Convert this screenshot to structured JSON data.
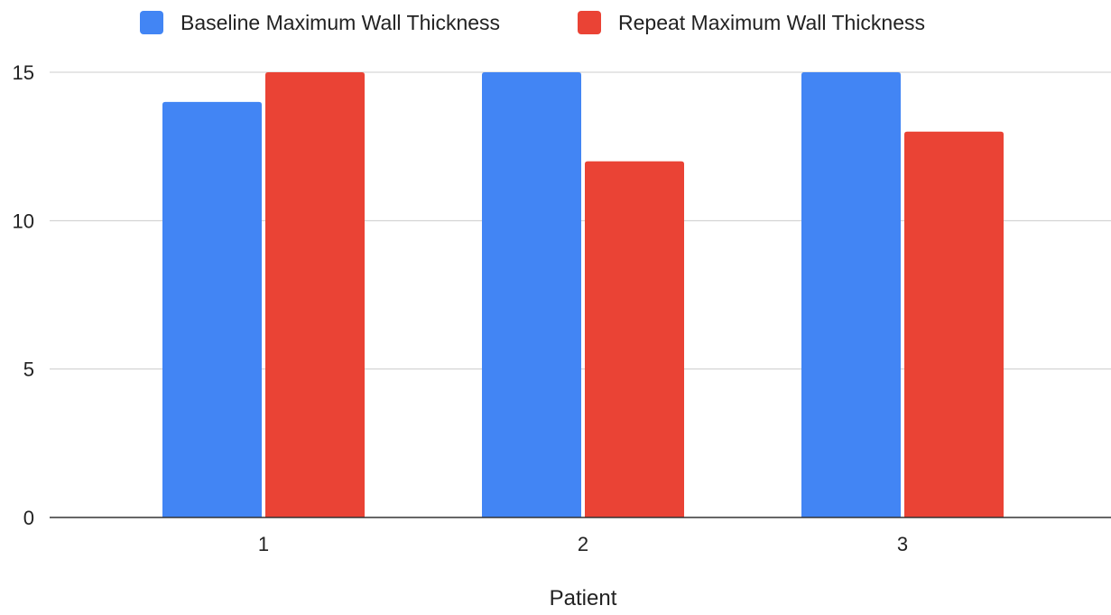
{
  "chart_data": {
    "type": "bar",
    "title": "",
    "xlabel": "Patient",
    "ylabel": "",
    "categories": [
      "1",
      "2",
      "3"
    ],
    "series": [
      {
        "name": "Baseline Maximum Wall Thickness",
        "color": "#4285F4",
        "values": [
          14,
          15,
          15
        ]
      },
      {
        "name": "Repeat Maximum Wall Thickness",
        "color": "#EA4335",
        "values": [
          15,
          12,
          13
        ]
      }
    ],
    "ylim": [
      0,
      15
    ],
    "yticks": [
      "0",
      "5",
      "10",
      "15"
    ],
    "grid": true,
    "legend_position": "top"
  }
}
